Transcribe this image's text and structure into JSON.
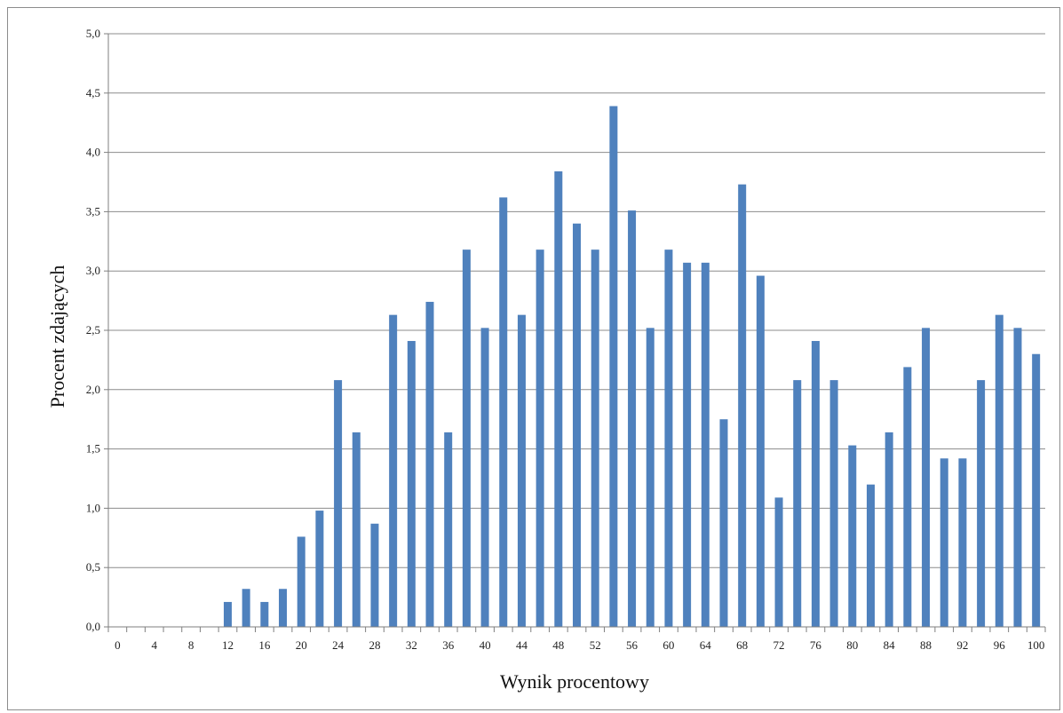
{
  "chart_data": {
    "type": "bar",
    "xlabel": "Wynik procentowy",
    "ylabel": "Procent zdających",
    "ylim": [
      0,
      5
    ],
    "yticks": [
      "0,0",
      "0,5",
      "1,0",
      "1,5",
      "2,0",
      "2,5",
      "3,0",
      "3,5",
      "4,0",
      "4,5",
      "5,0"
    ],
    "grid": true,
    "categories": [
      0,
      2,
      4,
      6,
      8,
      10,
      12,
      14,
      16,
      18,
      20,
      22,
      24,
      26,
      28,
      30,
      32,
      34,
      36,
      38,
      40,
      42,
      44,
      46,
      48,
      50,
      52,
      54,
      56,
      58,
      60,
      62,
      64,
      66,
      68,
      70,
      72,
      74,
      76,
      78,
      80,
      82,
      84,
      86,
      88,
      90,
      92,
      94,
      96,
      98,
      100
    ],
    "xtick_labels": [
      "0",
      "4",
      "8",
      "12",
      "16",
      "20",
      "24",
      "28",
      "32",
      "36",
      "40",
      "44",
      "48",
      "52",
      "56",
      "60",
      "64",
      "68",
      "72",
      "76",
      "80",
      "84",
      "88",
      "92",
      "96",
      "100"
    ],
    "values": [
      0,
      0,
      0,
      0,
      0,
      0,
      0.21,
      0.32,
      0.21,
      0.32,
      0.76,
      0.98,
      2.08,
      1.64,
      0.87,
      2.63,
      2.41,
      2.74,
      1.64,
      3.18,
      2.52,
      3.62,
      2.63,
      3.18,
      3.84,
      3.4,
      3.18,
      4.39,
      3.51,
      2.52,
      3.18,
      3.07,
      3.07,
      1.75,
      3.73,
      2.96,
      1.09,
      2.08,
      2.41,
      2.08,
      1.53,
      1.2,
      1.64,
      2.19,
      2.52,
      1.42,
      1.42,
      2.08,
      2.63,
      2.52,
      2.3
    ],
    "colors": {
      "bar": "#4f81bd",
      "grid": "#8c8c8c",
      "axis": "#7f7f7f"
    }
  }
}
